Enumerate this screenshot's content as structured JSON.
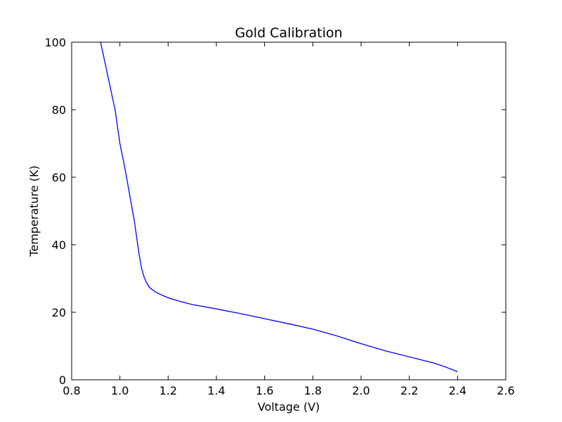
{
  "chart_data": {
    "type": "line",
    "title": "Gold Calibration",
    "xlabel": "Voltage (V)",
    "ylabel": "Temperature (K)",
    "xlim": [
      0.8,
      2.6
    ],
    "ylim": [
      0,
      100
    ],
    "xticks": [
      "0.8",
      "1.0",
      "1.2",
      "1.4",
      "1.6",
      "1.8",
      "2.0",
      "2.2",
      "2.4",
      "2.6"
    ],
    "yticks": [
      "0",
      "20",
      "40",
      "60",
      "80",
      "100"
    ],
    "grid": false,
    "legend": null,
    "series": [
      {
        "color": "#0000ff",
        "x": [
          0.92,
          0.95,
          0.98,
          1.0,
          1.02,
          1.04,
          1.06,
          1.07,
          1.08,
          1.09,
          1.1,
          1.11,
          1.12,
          1.13,
          1.15,
          1.18,
          1.2,
          1.25,
          1.3,
          1.4,
          1.5,
          1.6,
          1.7,
          1.8,
          1.9,
          2.0,
          2.1,
          2.2,
          2.3,
          2.35,
          2.4
        ],
        "y": [
          100,
          90,
          80,
          70,
          63,
          55,
          47,
          42,
          37,
          33,
          30.5,
          28.8,
          27.6,
          26.9,
          25.9,
          24.9,
          24.3,
          23.2,
          22.3,
          21.0,
          19.6,
          18.1,
          16.6,
          15.0,
          13.0,
          10.7,
          8.6,
          6.8,
          5.0,
          3.8,
          2.4
        ]
      }
    ]
  }
}
